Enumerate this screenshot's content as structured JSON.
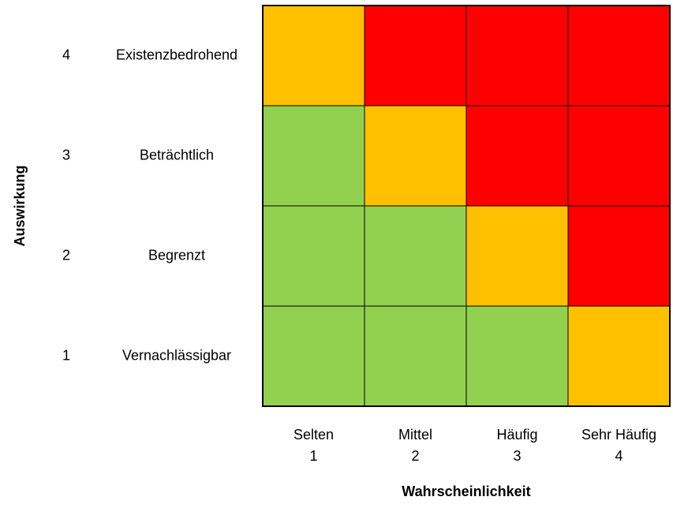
{
  "chart_data": {
    "type": "heatmap",
    "xlabel": "Wahrscheinlichkeit",
    "ylabel": "Auswirkung",
    "x_categories": [
      {
        "label": "Selten",
        "value": 1
      },
      {
        "label": "Mittel",
        "value": 2
      },
      {
        "label": "Häufig",
        "value": 3
      },
      {
        "label": "Sehr Häufig",
        "value": 4
      }
    ],
    "y_categories": [
      {
        "label": "Vernachlässigbar",
        "value": 1
      },
      {
        "label": "Begrenzt",
        "value": 2
      },
      {
        "label": "Beträchtlich",
        "value": 3
      },
      {
        "label": "Existenzbedrohend",
        "value": 4
      }
    ],
    "colors": {
      "green": "#92d050",
      "orange": "#ffc000",
      "red": "#ff0000"
    },
    "cells": [
      {
        "x": 1,
        "y": 1,
        "level": "green"
      },
      {
        "x": 2,
        "y": 1,
        "level": "green"
      },
      {
        "x": 3,
        "y": 1,
        "level": "green"
      },
      {
        "x": 4,
        "y": 1,
        "level": "orange"
      },
      {
        "x": 1,
        "y": 2,
        "level": "green"
      },
      {
        "x": 2,
        "y": 2,
        "level": "green"
      },
      {
        "x": 3,
        "y": 2,
        "level": "orange"
      },
      {
        "x": 4,
        "y": 2,
        "level": "red"
      },
      {
        "x": 1,
        "y": 3,
        "level": "green"
      },
      {
        "x": 2,
        "y": 3,
        "level": "orange"
      },
      {
        "x": 3,
        "y": 3,
        "level": "red"
      },
      {
        "x": 4,
        "y": 3,
        "level": "red"
      },
      {
        "x": 1,
        "y": 4,
        "level": "orange"
      },
      {
        "x": 2,
        "y": 4,
        "level": "red"
      },
      {
        "x": 3,
        "y": 4,
        "level": "red"
      },
      {
        "x": 4,
        "y": 4,
        "level": "red"
      }
    ]
  }
}
